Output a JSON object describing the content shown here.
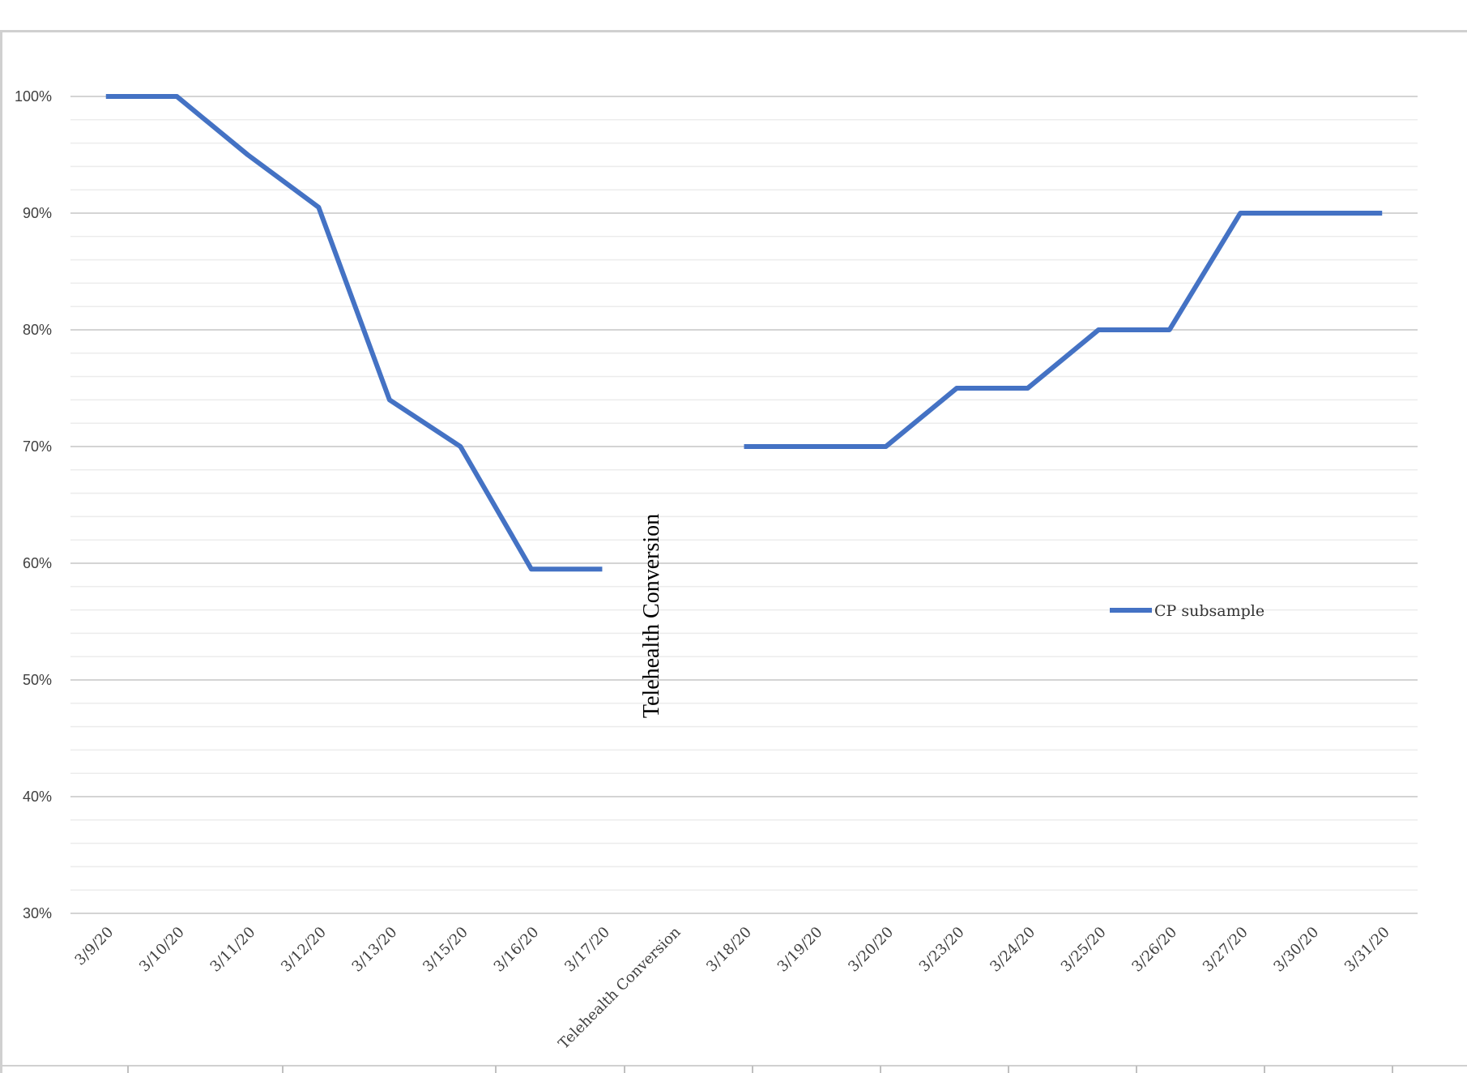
{
  "chart_data": {
    "type": "line",
    "title": "",
    "xlabel": "",
    "ylabel": "",
    "categories": [
      "3/9/20",
      "3/10/20",
      "3/11/20",
      "3/12/20",
      "3/13/20",
      "3/15/20",
      "3/16/20",
      "3/17/20",
      "Telehealth Conversion",
      "3/18/20",
      "3/19/20",
      "3/20/20",
      "3/23/20",
      "3/24/20",
      "3/25/20",
      "3/26/20",
      "3/27/20",
      "3/30/20",
      "3/31/20"
    ],
    "y_tick_labels": [
      "30%",
      "40%",
      "50%",
      "60%",
      "70%",
      "80%",
      "90%",
      "100%"
    ],
    "ylim": [
      30,
      100
    ],
    "grid": true,
    "series": [
      {
        "name": "CP subsample",
        "color": "#4472C4",
        "values": [
          100,
          100,
          95,
          90.5,
          74,
          70,
          59.5,
          59.5,
          null,
          70,
          70,
          70,
          75,
          75,
          80,
          80,
          90,
          90,
          90
        ]
      }
    ],
    "legend": {
      "position": "right",
      "label": "CP subsample"
    },
    "annotations": [
      {
        "text": "Telehealth Conversion",
        "category_index": 8,
        "rotation": "vertical"
      }
    ]
  }
}
